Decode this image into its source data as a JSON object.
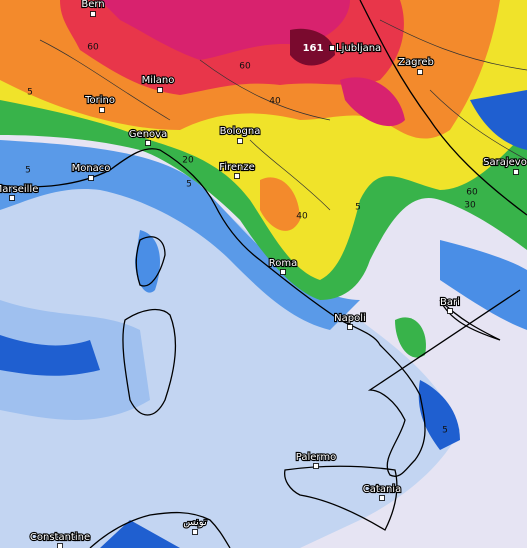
{
  "map": {
    "cities": [
      "Bern",
      "Milano",
      "Torino",
      "Genova",
      "Bologna",
      "Monaco",
      "Marseille",
      "Firenze",
      "Ljubljana",
      "Zagreb",
      "Sarajevo",
      "Roma",
      "Napoli",
      "Bari",
      "Palermo",
      "Catania",
      "Constantine",
      "تونس"
    ],
    "max_marker": "161",
    "contour_labels": [
      "60",
      "60",
      "40",
      "20",
      "5",
      "5",
      "40",
      "5",
      "60",
      "30",
      "5",
      "5"
    ]
  }
}
